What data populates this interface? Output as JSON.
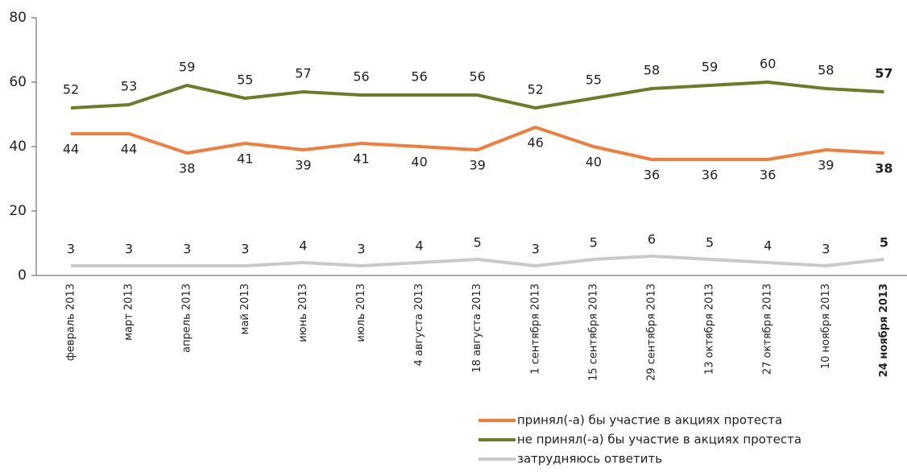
{
  "chart_data": {
    "type": "line",
    "categories": [
      "февраль 2013",
      "март 2013",
      "апрель 2013",
      "май 2013",
      "июнь 2013",
      "июль 2013",
      "4 августа 2013",
      "18 августа 2013",
      "1 сентября 2013",
      "15 сентября 2013",
      "29 сентября 2013",
      "13 октября 2013",
      "27 октября 2013",
      "10 ноября 2013",
      "24 ноября 2013"
    ],
    "series": [
      {
        "name": "принял(-а) бы участие в акциях протеста",
        "color": "#f07d3a",
        "values": [
          44,
          44,
          38,
          41,
          39,
          41,
          40,
          39,
          46,
          40,
          36,
          36,
          36,
          39,
          38
        ]
      },
      {
        "name": "не принял(-а) бы участие в акциях протеста",
        "color": "#6e7a26",
        "values": [
          52,
          53,
          59,
          55,
          57,
          56,
          56,
          56,
          52,
          55,
          58,
          59,
          60,
          58,
          57
        ]
      },
      {
        "name": "затрудняюсь ответить",
        "color": "#c9c9c9",
        "values": [
          3,
          3,
          3,
          3,
          4,
          3,
          4,
          5,
          3,
          5,
          6,
          5,
          4,
          3,
          5
        ]
      }
    ],
    "ylim": [
      0,
      80
    ],
    "yticks": [
      0,
      20,
      40,
      60,
      80
    ],
    "grid": false
  }
}
